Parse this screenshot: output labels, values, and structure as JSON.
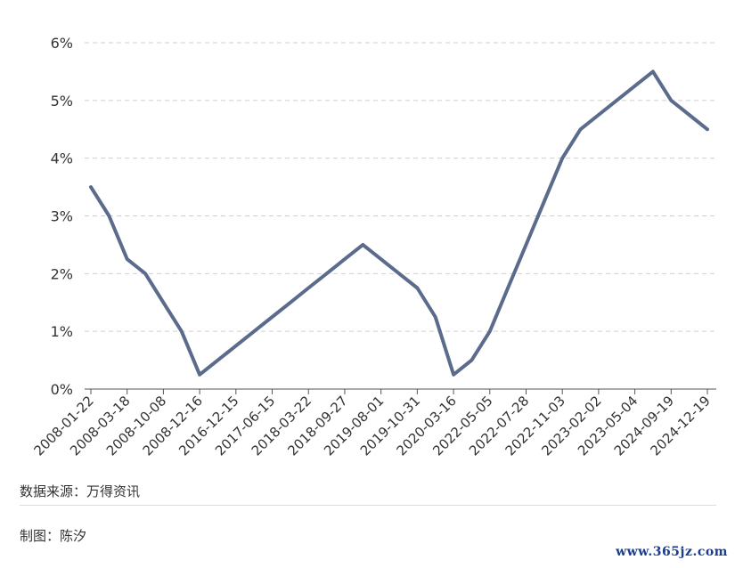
{
  "chart_data": {
    "type": "line",
    "title": "",
    "xlabel": "",
    "ylabel": "",
    "ylim": [
      0,
      6
    ],
    "y_ticks": [
      "0%",
      "1%",
      "2%",
      "3%",
      "4%",
      "5%",
      "6%"
    ],
    "grid": "horizontal dashed",
    "color": "#5b6b8c",
    "x_tick_labels": [
      "2008-01-22",
      "2008-03-18",
      "2008-10-08",
      "2008-12-16",
      "2016-12-15",
      "2017-06-15",
      "2018-03-22",
      "2018-09-27",
      "2019-08-01",
      "2019-10-31",
      "2020-03-16",
      "2022-05-05",
      "2022-07-28",
      "2022-11-03",
      "2023-02-02",
      "2023-05-04",
      "2024-09-19",
      "2024-12-19"
    ],
    "x": [
      "2008-01-22",
      "2008-01-30",
      "2008-03-18",
      "2008-04-30",
      "2008-10-08",
      "2008-10-29",
      "2008-12-16",
      "2015-12-17",
      "2016-12-15",
      "2017-03-16",
      "2017-06-15",
      "2017-12-14",
      "2018-03-22",
      "2018-06-14",
      "2018-09-27",
      "2018-12-20",
      "2019-08-01",
      "2019-09-19",
      "2019-10-31",
      "2020-03-03",
      "2020-03-16",
      "2022-03-17",
      "2022-05-05",
      "2022-06-16",
      "2022-07-28",
      "2022-09-22",
      "2022-11-03",
      "2022-12-15",
      "2023-02-02",
      "2023-03-23",
      "2023-05-04",
      "2023-07-27",
      "2024-09-19",
      "2024-11-08",
      "2024-12-19"
    ],
    "series": [
      {
        "values": [
          3.5,
          3.0,
          2.25,
          2.0,
          1.5,
          1.0,
          0.25,
          0.5,
          0.75,
          1.0,
          1.25,
          1.5,
          1.75,
          2.0,
          2.25,
          2.5,
          2.25,
          2.0,
          1.75,
          1.25,
          0.25,
          0.5,
          1.0,
          1.75,
          2.5,
          3.25,
          4.0,
          4.5,
          4.75,
          5.0,
          5.25,
          5.5,
          5.0,
          4.75,
          4.5
        ]
      }
    ]
  },
  "footer": {
    "source": "数据来源：万得资讯",
    "credit": "制图：陈汐"
  },
  "watermark": "www.365jz.com"
}
